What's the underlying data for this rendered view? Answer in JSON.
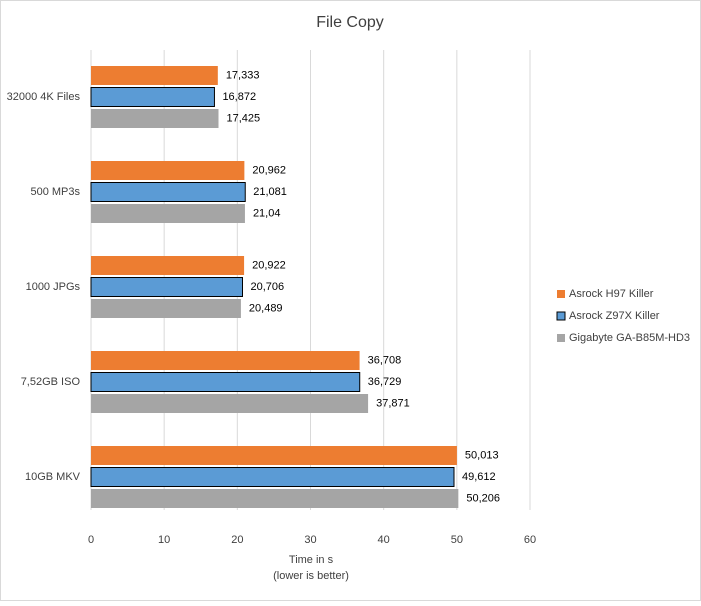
{
  "chart_data": {
    "type": "barh",
    "title": "File Copy",
    "xlabel": "Time in s",
    "xlabel_note": "(lower is better)",
    "categories": [
      "32000 4K Files",
      "500 MP3s",
      "1000 JPGs",
      "7,52GB ISO",
      "10GB MKV"
    ],
    "series": [
      {
        "name": "Asrock H97 Killer",
        "color": "#ed7d31",
        "values": [
          17.333,
          20.962,
          20.922,
          36.708,
          50.013
        ],
        "value_labels": [
          "17,333",
          "20,962",
          "20,922",
          "36,708",
          "50,013"
        ]
      },
      {
        "name": "Asrock Z97X Killer",
        "color": "#5b9bd5",
        "edgecolor": "#000000",
        "values": [
          16.872,
          21.081,
          20.706,
          36.729,
          49.612
        ],
        "value_labels": [
          "16,872",
          "21,081",
          "20,706",
          "36,729",
          "49,612"
        ]
      },
      {
        "name": "Gigabyte GA-B85M-HD3",
        "color": "#a5a5a5",
        "values": [
          17.425,
          21.04,
          20.489,
          37.871,
          50.206
        ],
        "value_labels": [
          "17,425",
          "21,04",
          "20,489",
          "37,871",
          "50,206"
        ]
      }
    ],
    "xlim": [
      0,
      60
    ],
    "xticks": [
      0,
      10,
      20,
      30,
      40,
      50,
      60
    ],
    "grid": true,
    "legend": "right"
  }
}
